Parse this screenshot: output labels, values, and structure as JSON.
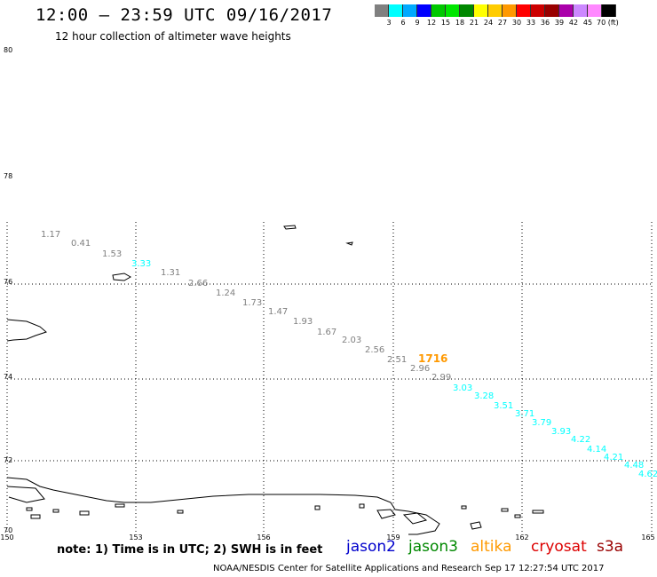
{
  "title": "12:00 – 23:59 UTC 09/16/2017",
  "subtitle": "12 hour collection of altimeter wave heights",
  "legend": {
    "colors": [
      "#808080",
      "#00ffff",
      "#00aaff",
      "#0000ff",
      "#00c800",
      "#00e600",
      "#008800",
      "#ffff00",
      "#ffcc00",
      "#ff9900",
      "#ff0000",
      "#cc0000",
      "#990000",
      "#aa00aa",
      "#cc88ff",
      "#ff88ff",
      "#000000"
    ],
    "labels": [
      "3",
      "6",
      "9",
      "12",
      "15",
      "18",
      "21",
      "24",
      "27",
      "30",
      "33",
      "36",
      "39",
      "42",
      "45",
      "70 (ft)"
    ]
  },
  "axes": {
    "lon_ticks": [
      "150",
      "153",
      "156",
      "159",
      "162",
      "165"
    ],
    "lat_ticks": [
      "80",
      "78",
      "76",
      "74",
      "72",
      "70"
    ]
  },
  "track": [
    {
      "label": "1.17",
      "color": "#808080"
    },
    {
      "label": "0.41",
      "color": "#808080"
    },
    {
      "label": "1.53",
      "color": "#808080"
    },
    {
      "label": "3.33",
      "color": "#00ffff"
    },
    {
      "label": "1.31",
      "color": "#808080"
    },
    {
      "label": "2.66",
      "color": "#808080"
    },
    {
      "label": "1.24",
      "color": "#808080"
    },
    {
      "label": "1.73",
      "color": "#808080"
    },
    {
      "label": "1.47",
      "color": "#808080"
    },
    {
      "label": "1.93",
      "color": "#808080"
    },
    {
      "label": "1.67",
      "color": "#808080"
    },
    {
      "label": "2.03",
      "color": "#808080"
    },
    {
      "label": "2.56",
      "color": "#808080"
    },
    {
      "label": "2.51",
      "color": "#808080"
    },
    {
      "label": "2.96",
      "color": "#808080"
    },
    {
      "label": "2.99",
      "color": "#808080"
    },
    {
      "label": "3.03",
      "color": "#00ffff"
    },
    {
      "label": "3.28",
      "color": "#00ffff"
    },
    {
      "label": "3.51",
      "color": "#00ffff"
    },
    {
      "label": "3.71",
      "color": "#00ffff"
    },
    {
      "label": "3.79",
      "color": "#00ffff"
    },
    {
      "label": "3.93",
      "color": "#00ffff"
    },
    {
      "label": "4.22",
      "color": "#00ffff"
    },
    {
      "label": "4.14",
      "color": "#00ffff"
    },
    {
      "label": "4.21",
      "color": "#00ffff"
    },
    {
      "label": "4.48",
      "color": "#00ffff"
    },
    {
      "label": "4.62",
      "color": "#00ffff"
    }
  ],
  "time_label": {
    "text": "1716",
    "color": "#ff9900"
  },
  "note": "note: 1) Time is in UTC; 2) SWH is in feet",
  "satellites": [
    {
      "name": "jason2",
      "color": "#0000cc"
    },
    {
      "name": "jason3",
      "color": "#008800"
    },
    {
      "name": "altika",
      "color": "#ff9900"
    },
    {
      "name": "cryosat",
      "color": "#dd0000"
    },
    {
      "name": "s3a",
      "color": "#990000"
    }
  ],
  "credit": "NOAA/NESDIS Center for Satellite Applications and Research   Sep 17 12:27:54 UTC 2017"
}
